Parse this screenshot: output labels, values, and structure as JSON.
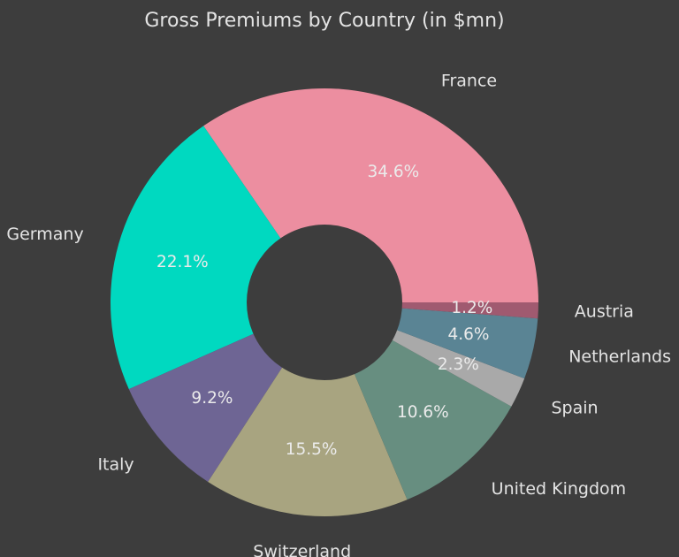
{
  "chart_data": {
    "type": "pie",
    "title": "Gross Premiums by Country (in $mn)",
    "donut": true,
    "start_angle_deg": 0,
    "direction": "counterclockwise",
    "background": "#3d3d3d",
    "categories": [
      "France",
      "Germany",
      "Italy",
      "Switzerland",
      "United Kingdom",
      "Spain",
      "Netherlands",
      "Austria"
    ],
    "values": [
      34.6,
      22.1,
      9.2,
      15.5,
      10.6,
      2.3,
      4.6,
      1.2
    ],
    "value_labels": [
      "34.6%",
      "22.1%",
      "9.2%",
      "15.5%",
      "10.6%",
      "2.3%",
      "4.6%",
      "1.2%"
    ],
    "colors": [
      "#ec8ea0",
      "#00d9c0",
      "#6e6594",
      "#a8a480",
      "#678e80",
      "#a9a9a9",
      "#5a8494",
      "#a05a70"
    ]
  }
}
